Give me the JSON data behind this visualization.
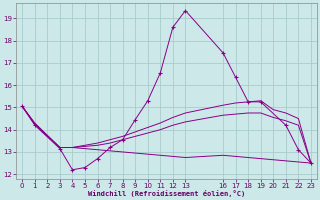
{
  "xlabel": "Windchill (Refroidissement éolien,°C)",
  "background_color": "#cce8e8",
  "grid_color": "#aacccc",
  "line_color": "#880088",
  "xlim": [
    -0.5,
    23.5
  ],
  "ylim": [
    11.8,
    19.7
  ],
  "yticks": [
    12,
    13,
    14,
    15,
    16,
    17,
    18,
    19
  ],
  "xticks": [
    0,
    1,
    2,
    3,
    4,
    5,
    6,
    7,
    8,
    9,
    10,
    11,
    12,
    13,
    16,
    17,
    18,
    19,
    20,
    21,
    22,
    23
  ],
  "figsize": [
    3.2,
    2.0
  ],
  "dpi": 100,
  "series": [
    {
      "x": [
        0,
        1,
        3,
        4,
        5,
        6,
        7,
        8,
        9,
        10,
        11,
        12,
        13,
        16,
        17,
        18,
        19,
        21,
        22,
        23
      ],
      "y": [
        15.05,
        14.2,
        13.15,
        12.2,
        12.3,
        12.7,
        13.2,
        13.55,
        14.45,
        15.3,
        16.55,
        18.6,
        19.35,
        17.45,
        16.35,
        15.25,
        15.25,
        14.2,
        13.1,
        12.5
      ],
      "marker": "+"
    },
    {
      "x": [
        0,
        1,
        3,
        4,
        5,
        6,
        7,
        8,
        9,
        10,
        11,
        12,
        13,
        16,
        17,
        18,
        19,
        20,
        21,
        22,
        23
      ],
      "y": [
        15.05,
        14.3,
        13.2,
        13.2,
        13.3,
        13.4,
        13.55,
        13.7,
        13.9,
        14.1,
        14.3,
        14.55,
        14.75,
        15.1,
        15.2,
        15.25,
        15.3,
        14.9,
        14.75,
        14.5,
        12.5
      ],
      "marker": null
    },
    {
      "x": [
        0,
        1,
        3,
        4,
        5,
        6,
        7,
        8,
        9,
        10,
        11,
        12,
        13,
        16,
        17,
        18,
        19,
        20,
        21,
        22,
        23
      ],
      "y": [
        15.05,
        14.25,
        13.2,
        13.2,
        13.25,
        13.3,
        13.4,
        13.55,
        13.7,
        13.85,
        14.0,
        14.2,
        14.35,
        14.65,
        14.7,
        14.75,
        14.75,
        14.55,
        14.4,
        14.2,
        12.5
      ],
      "marker": null
    },
    {
      "x": [
        0,
        1,
        3,
        4,
        5,
        6,
        7,
        8,
        9,
        10,
        11,
        12,
        13,
        16,
        17,
        18,
        19,
        20,
        21,
        22,
        23
      ],
      "y": [
        15.05,
        14.25,
        13.2,
        13.2,
        13.15,
        13.1,
        13.05,
        13.0,
        12.95,
        12.9,
        12.85,
        12.8,
        12.75,
        12.85,
        12.8,
        12.75,
        12.7,
        12.65,
        12.6,
        12.55,
        12.5
      ],
      "marker": null
    }
  ]
}
